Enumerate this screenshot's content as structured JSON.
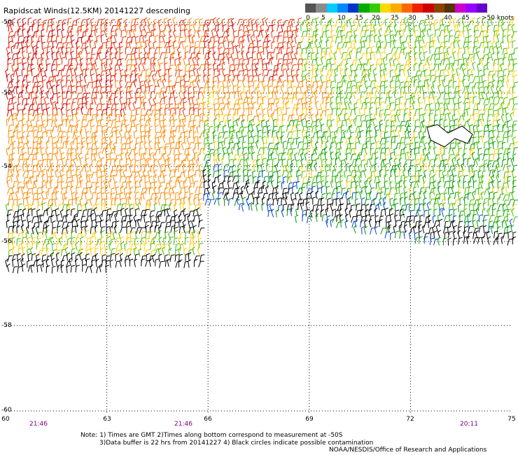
{
  "title": "Rapidscat Winds(12.5KM) 20141227 descending",
  "colorbar": {
    "colors": [
      "#555555",
      "#8a8a8a",
      "#00ccff",
      "#0088ff",
      "#0033cc",
      "#00aa00",
      "#33cc00",
      "#ffd800",
      "#ffaa00",
      "#ff6600",
      "#ee2200",
      "#cc0000",
      "#884400",
      "#553300",
      "#cc00cc",
      "#9900ff",
      "#6600cc"
    ],
    "labels": [
      "0",
      "5",
      "10",
      "15",
      "20",
      "25",
      "30",
      "35",
      "40",
      "45",
      ">50 knots"
    ]
  },
  "axes": {
    "lon_ticks": [
      "60",
      "63",
      "66",
      "69",
      "72",
      "75"
    ],
    "lat_ticks": [
      "-50",
      "-52",
      "-54",
      "-56",
      "-58",
      "-60"
    ],
    "lon_range": [
      60,
      75
    ],
    "lat_range": [
      -50,
      -60
    ],
    "grid": "dotted"
  },
  "times": [
    "21:46",
    "21:46",
    "20:11"
  ],
  "note": {
    "line1": "Note: 1) Times are GMT 2)Times along bottom correspond to measurement at -50S",
    "line2": "3)Data buffer is 22 hrs from 20141227 4) Black circles indicate possible contamination"
  },
  "credit": "NOAA/NESDIS/Office of Research and Applications"
}
